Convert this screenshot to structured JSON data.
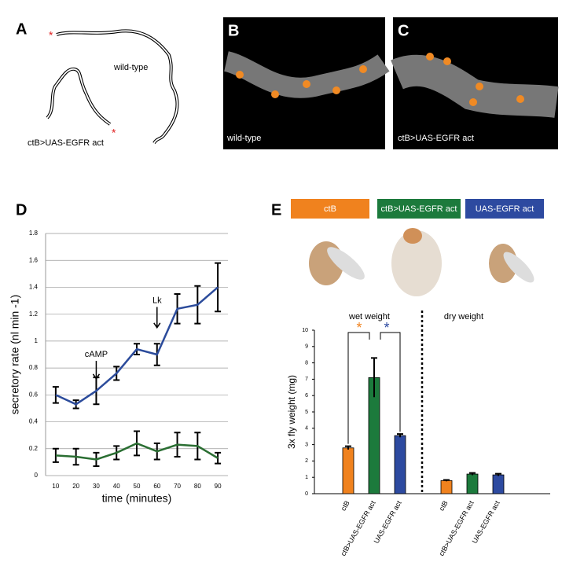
{
  "panels": {
    "a": "A",
    "b": "B",
    "c": "C",
    "d": "D",
    "e": "E"
  },
  "figure_a": {
    "wild_type_label": "wild-type",
    "mutant_label": "ctB>UAS-EGFR act",
    "marker": "*"
  },
  "figure_b": {
    "label": "wild-type"
  },
  "figure_c": {
    "label": "ctB>UAS-EGFR act"
  },
  "chart_data": [
    {
      "type": "line",
      "x": [
        10,
        20,
        30,
        40,
        50,
        60,
        70,
        80,
        90
      ],
      "xlim": [
        5,
        95
      ],
      "xticks": [
        10,
        20,
        30,
        40,
        50,
        60,
        70,
        80,
        90
      ],
      "ylim": [
        0,
        1.8
      ],
      "yticks": [
        0,
        0.2,
        0.4,
        0.6,
        0.8,
        1,
        1.2,
        1.4,
        1.6,
        1.8
      ],
      "grid": true,
      "xlabel": "time (minutes)",
      "ylabel": "secretory rate (nl min -1)",
      "series": [
        {
          "color": "#2b4b9b",
          "values": [
            0.6,
            0.53,
            0.63,
            0.76,
            0.94,
            0.9,
            1.24,
            1.27,
            1.4
          ],
          "errors": [
            0.06,
            0.03,
            0.1,
            0.05,
            0.04,
            0.08,
            0.11,
            0.14,
            0.18
          ]
        },
        {
          "color": "#2a6e32",
          "values": [
            0.15,
            0.14,
            0.12,
            0.17,
            0.24,
            0.18,
            0.23,
            0.22,
            0.13
          ],
          "errors": [
            0.05,
            0.06,
            0.05,
            0.05,
            0.09,
            0.06,
            0.09,
            0.1,
            0.04
          ]
        }
      ],
      "annotations": [
        "cAMP",
        "Lk"
      ]
    },
    {
      "type": "bar",
      "categories": [
        "ctB",
        "ctB>UAS-EGFR act",
        "UAS-EGFR act"
      ],
      "colors": [
        "#f0821e",
        "#1c7a3c",
        "#2d4aa0"
      ],
      "groups": [
        {
          "name": "wet weight",
          "values": [
            2.8,
            7.1,
            3.55
          ],
          "errors": [
            0.1,
            1.2,
            0.1
          ]
        },
        {
          "name": "dry weight",
          "values": [
            0.8,
            1.2,
            1.15
          ],
          "errors": [
            0.04,
            0.07,
            0.07
          ]
        }
      ],
      "ylim": [
        0,
        10
      ],
      "yticks": [
        0,
        1,
        2,
        3,
        4,
        5,
        6,
        7,
        8,
        9,
        10
      ],
      "ylabel": "3x fly weight (mg)",
      "significance": "*"
    }
  ]
}
